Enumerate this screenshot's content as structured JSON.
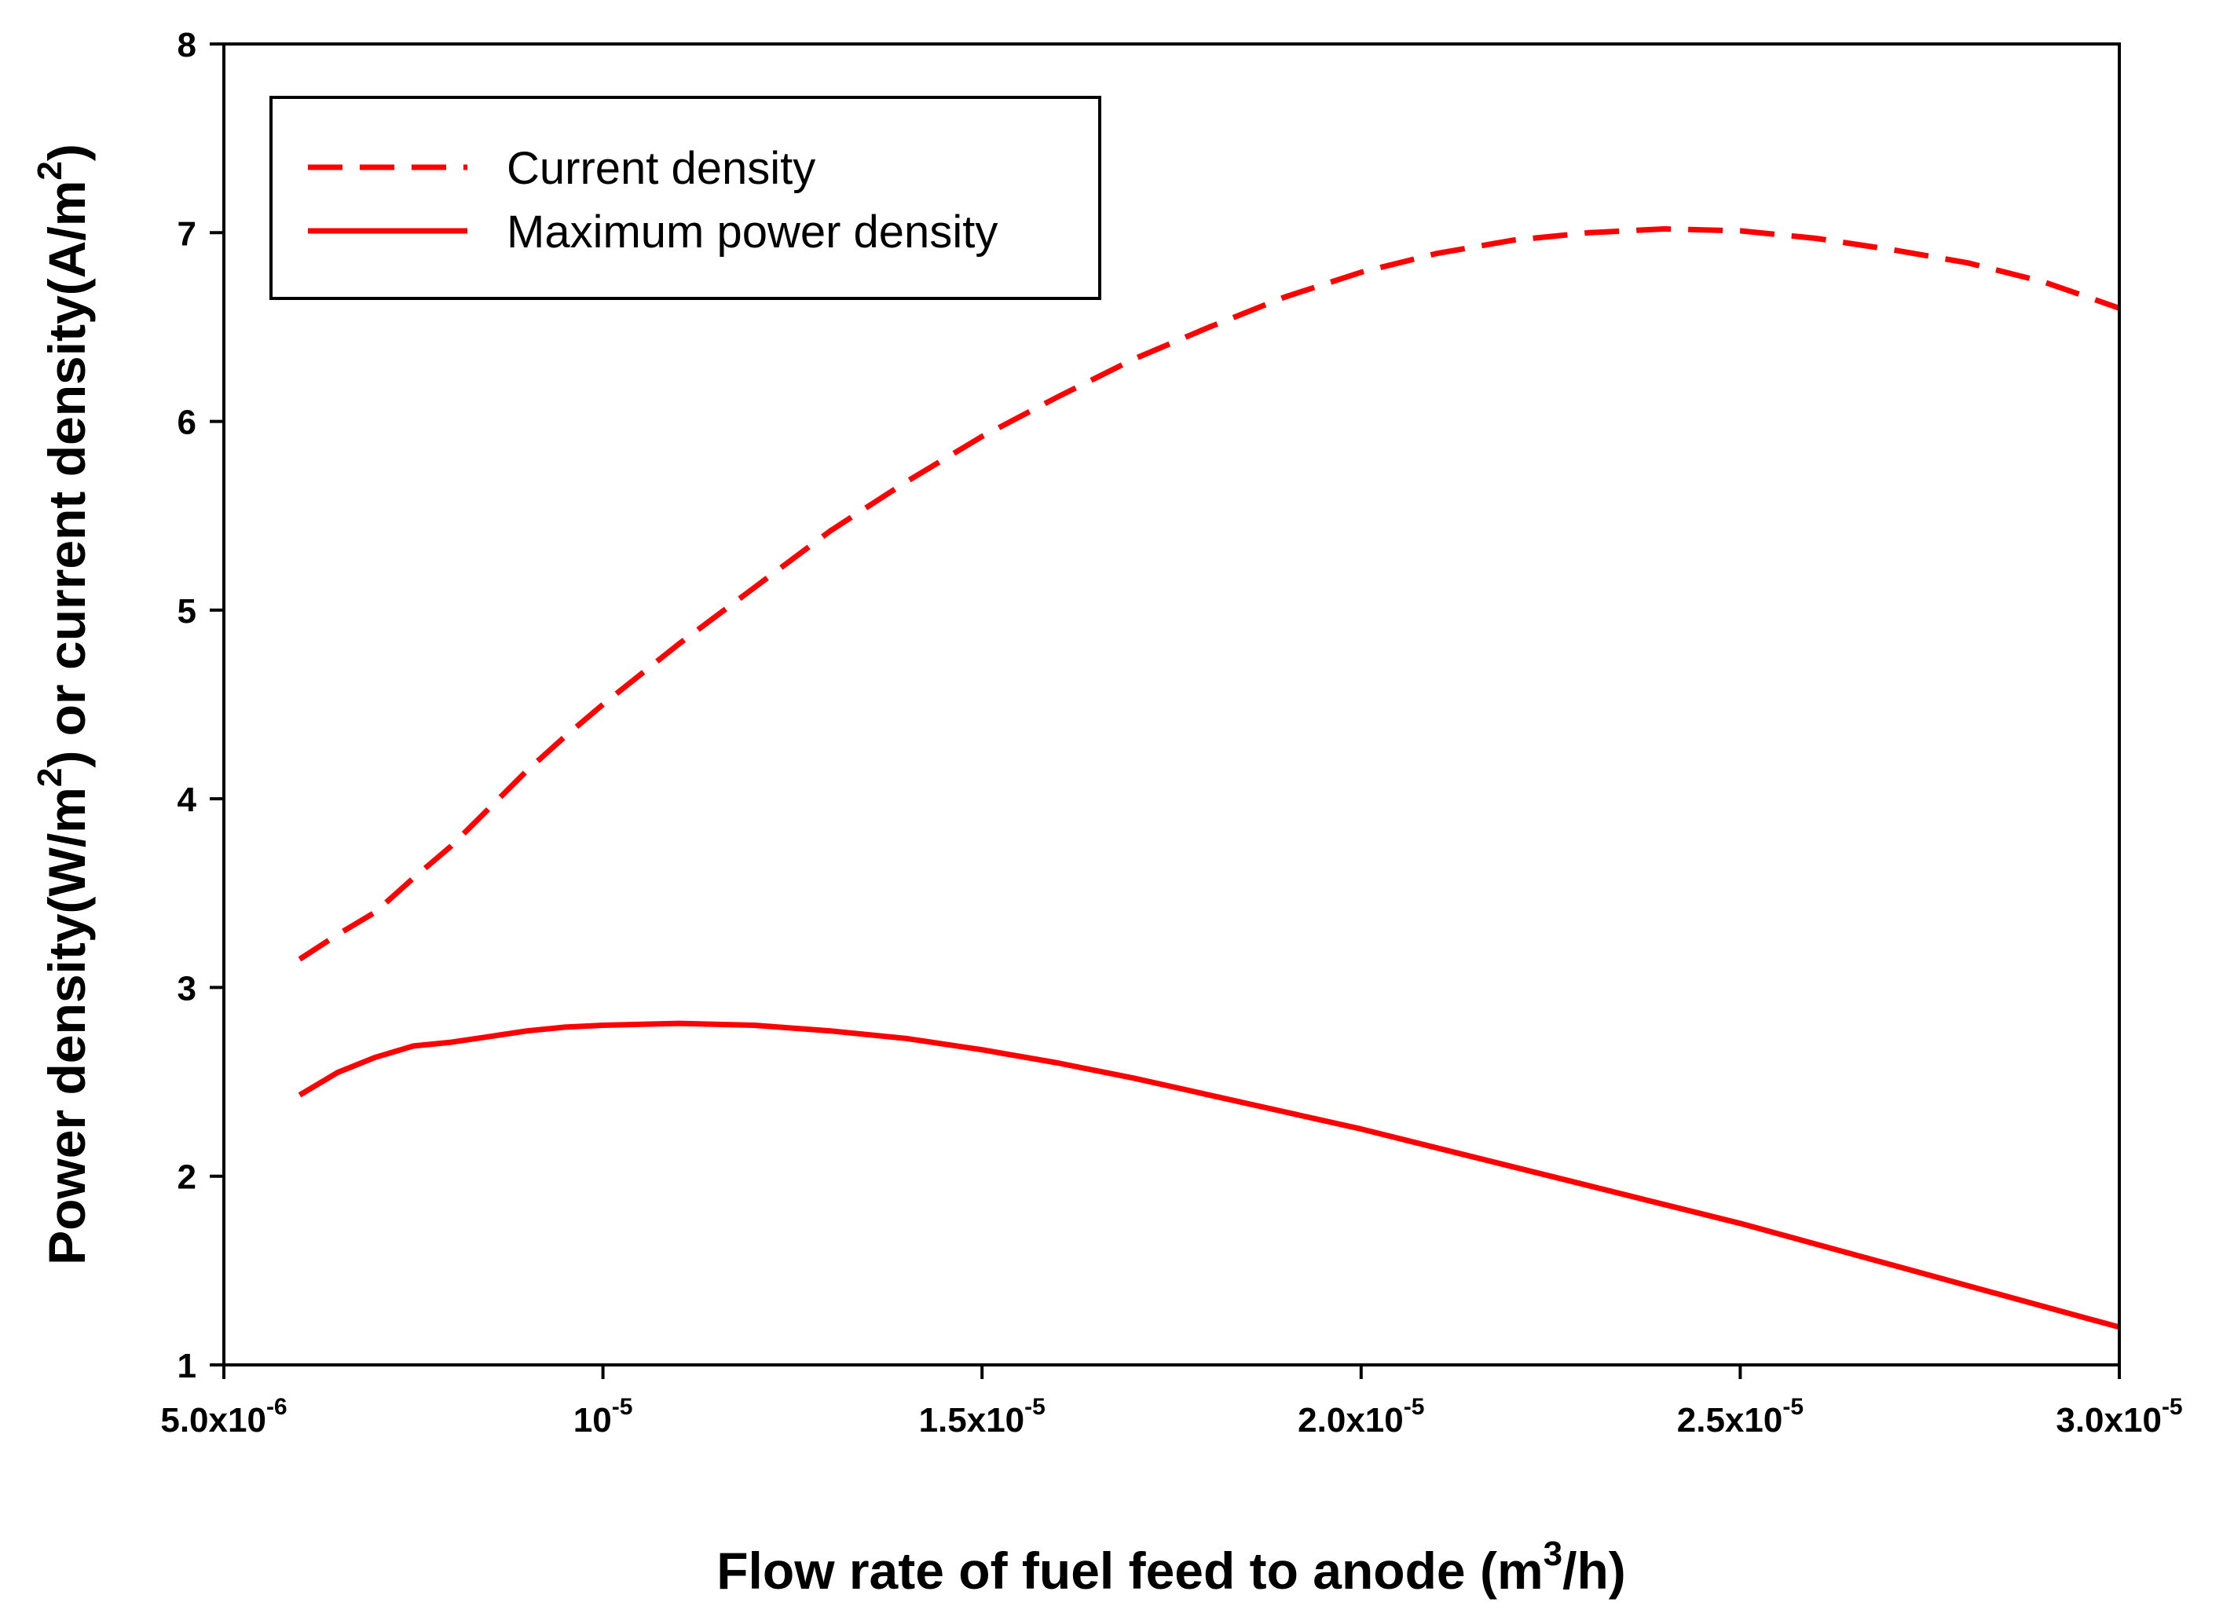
{
  "chart_data": {
    "type": "line",
    "title": "",
    "xlabel": {
      "prefix": "Flow rate of fuel feed to anode (m",
      "sup": "3",
      "suffix": "/h)"
    },
    "ylabel": {
      "p1": "Power density(W/m",
      "sup1": "2",
      "p2": ") or current density(A/m",
      "sup2": "2",
      "p3": ")"
    },
    "xlim": [
      5e-06,
      3e-05
    ],
    "ylim": [
      1,
      8
    ],
    "x_ticks": [
      {
        "value": 5e-06,
        "base": "5.0x10",
        "exp": "-6"
      },
      {
        "value": 1e-05,
        "base": "10",
        "exp": "-5"
      },
      {
        "value": 1.5e-05,
        "base": "1.5x10",
        "exp": "-5"
      },
      {
        "value": 2e-05,
        "base": "2.0x10",
        "exp": "-5"
      },
      {
        "value": 2.5e-05,
        "base": "2.5x10",
        "exp": "-5"
      },
      {
        "value": 3e-05,
        "base": "3.0x10",
        "exp": "-5"
      }
    ],
    "y_ticks": [
      {
        "value": 1,
        "label": "1"
      },
      {
        "value": 2,
        "label": "2"
      },
      {
        "value": 3,
        "label": "3"
      },
      {
        "value": 4,
        "label": "4"
      },
      {
        "value": 5,
        "label": "5"
      },
      {
        "value": 6,
        "label": "6"
      },
      {
        "value": 7,
        "label": "7"
      },
      {
        "value": 8,
        "label": "8"
      }
    ],
    "legend_position": "top-left",
    "series": [
      {
        "name": "Current density",
        "style": "dashed",
        "color": "#ff0000",
        "x": [
          6e-06,
          6.5e-06,
          7e-06,
          7.5e-06,
          8e-06,
          8.5e-06,
          9e-06,
          9.5e-06,
          1e-05,
          1.1e-05,
          1.2e-05,
          1.3e-05,
          1.4e-05,
          1.5e-05,
          1.6e-05,
          1.7e-05,
          1.8e-05,
          1.9e-05,
          2e-05,
          2.1e-05,
          2.2e-05,
          2.3e-05,
          2.4e-05,
          2.5e-05,
          2.6e-05,
          2.7e-05,
          2.8e-05,
          2.9e-05,
          3e-05
        ],
        "values": [
          3.15,
          3.28,
          3.4,
          3.58,
          3.75,
          3.95,
          4.15,
          4.33,
          4.5,
          4.82,
          5.12,
          5.42,
          5.68,
          5.92,
          6.13,
          6.33,
          6.5,
          6.66,
          6.79,
          6.89,
          6.96,
          7.0,
          7.02,
          7.01,
          6.97,
          6.91,
          6.84,
          6.74,
          6.6
        ]
      },
      {
        "name": "Maximum power density",
        "style": "solid",
        "color": "#ff0000",
        "x": [
          6e-06,
          6.5e-06,
          7e-06,
          7.5e-06,
          8e-06,
          8.5e-06,
          9e-06,
          9.5e-06,
          1e-05,
          1.1e-05,
          1.2e-05,
          1.3e-05,
          1.4e-05,
          1.5e-05,
          1.6e-05,
          1.7e-05,
          1.8e-05,
          1.9e-05,
          2e-05,
          2.1e-05,
          2.2e-05,
          2.3e-05,
          2.4e-05,
          2.5e-05,
          2.6e-05,
          2.7e-05,
          2.8e-05,
          2.9e-05,
          3e-05
        ],
        "values": [
          2.43,
          2.55,
          2.63,
          2.69,
          2.71,
          2.74,
          2.77,
          2.79,
          2.8,
          2.81,
          2.8,
          2.77,
          2.73,
          2.67,
          2.6,
          2.52,
          2.43,
          2.34,
          2.25,
          2.15,
          2.05,
          1.95,
          1.85,
          1.75,
          1.64,
          1.53,
          1.42,
          1.31,
          1.2
        ]
      }
    ]
  }
}
